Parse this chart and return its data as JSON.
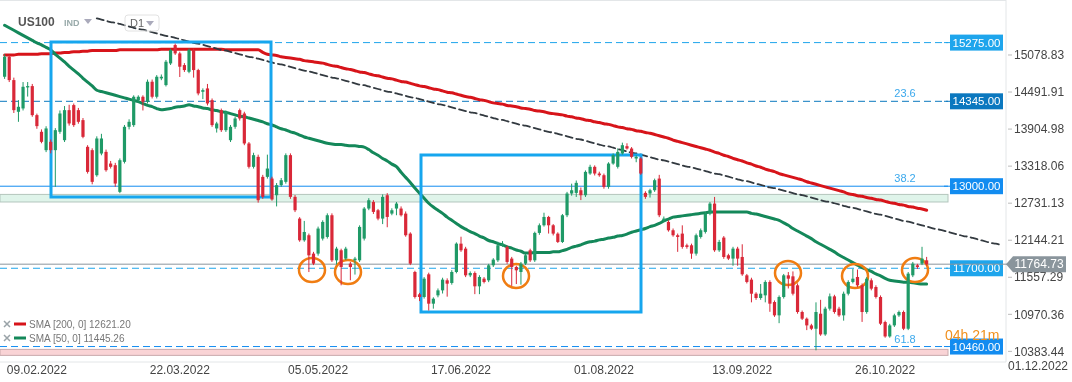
{
  "chart_data": {
    "type": "candlestick",
    "title": "US100",
    "annotations": [
      "IND",
      "D1",
      "04h 21m",
      "01.12.2022",
      {
        "text": "23.6",
        "y": 14345
      },
      {
        "text": "38.2",
        "y": 13000
      },
      {
        "text": "61.8",
        "y": 10460
      }
    ],
    "categories": [
      null,
      null,
      null,
      null,
      null,
      null,
      null,
      "09.02.2022",
      null,
      null,
      null,
      null,
      null,
      null,
      null,
      null,
      null,
      null,
      null,
      null,
      null,
      null,
      null,
      null,
      null,
      null,
      null,
      null,
      null,
      null,
      null,
      null,
      null,
      null,
      null,
      null,
      null,
      null,
      "22.03.2022",
      null,
      null,
      null,
      null,
      null,
      null,
      null,
      null,
      null,
      null,
      null,
      null,
      null,
      null,
      null,
      null,
      null,
      null,
      null,
      null,
      null,
      null,
      null,
      null,
      null,
      null,
      null,
      null,
      null,
      "05.05.2022",
      null,
      null,
      null,
      null,
      null,
      null,
      null,
      null,
      null,
      null,
      null,
      null,
      null,
      null,
      null,
      null,
      null,
      null,
      null,
      null,
      null,
      null,
      null,
      null,
      null,
      null,
      null,
      null,
      null,
      null,
      "17.06.2022",
      null,
      null,
      null,
      null,
      null,
      null,
      null,
      null,
      null,
      null,
      null,
      null,
      null,
      null,
      null,
      null,
      null,
      null,
      null,
      null,
      null,
      null,
      null,
      null,
      null,
      null,
      null,
      null,
      null,
      null,
      "01.08.2022",
      null,
      null,
      null,
      null,
      null,
      null,
      null,
      null,
      null,
      null,
      null,
      null,
      null,
      null,
      null,
      null,
      null,
      null,
      null,
      null,
      null,
      null,
      null,
      null,
      null,
      null,
      null,
      null,
      null,
      "13.09.2022",
      null,
      null,
      null,
      null,
      null,
      null,
      null,
      null,
      null,
      null,
      null,
      null,
      null,
      null,
      null,
      null,
      null,
      null,
      null,
      null,
      null,
      null,
      null,
      null,
      null,
      null,
      null,
      null,
      null,
      null,
      "26.10.2022",
      null,
      null,
      null,
      null,
      null,
      null,
      null,
      null,
      null,
      null,
      null,
      null,
      null,
      null,
      null,
      null,
      null,
      null,
      null,
      null,
      null,
      null,
      null,
      null,
      null
    ],
    "ohlc": [
      [
        14734,
        15090,
        14700,
        15051
      ],
      [
        15051,
        15080,
        14650,
        14681
      ],
      [
        14681,
        14720,
        14160,
        14205
      ],
      [
        14179,
        14364,
        14020,
        14258
      ],
      [
        14232,
        14650,
        14200,
        14575
      ],
      [
        14565,
        14650,
        14420,
        14586
      ],
      [
        14586,
        14620,
        14100,
        14126
      ],
      [
        14126,
        14150,
        13910,
        13952
      ],
      [
        13862,
        13900,
        13680,
        13703
      ],
      [
        13571,
        13950,
        13540,
        13915
      ],
      [
        13703,
        13740,
        13520,
        13571
      ],
      [
        13571,
        13920,
        12990,
        13888
      ],
      [
        13862,
        14200,
        13830,
        14152
      ],
      [
        13729,
        14270,
        13700,
        14205
      ],
      [
        14205,
        14290,
        13960,
        13994
      ],
      [
        14285,
        14310,
        13940,
        13968
      ],
      [
        14205,
        14240,
        13990,
        14020
      ],
      [
        14047,
        14080,
        13760,
        13782
      ],
      [
        13624,
        13650,
        13200,
        13227
      ],
      [
        13571,
        13600,
        13030,
        13069
      ],
      [
        13174,
        13790,
        13150,
        13756
      ],
      [
        13518,
        13830,
        13490,
        13756
      ],
      [
        13544,
        13580,
        13230,
        13254
      ],
      [
        13359,
        13400,
        13280,
        13307
      ],
      [
        13333,
        13370,
        12990,
        13042
      ],
      [
        12910,
        13440,
        12890,
        13412
      ],
      [
        13386,
        13970,
        13360,
        13941
      ],
      [
        13941,
        14060,
        13900,
        14020
      ],
      [
        13968,
        14440,
        13940,
        14417
      ],
      [
        14364,
        14440,
        14340,
        14417
      ],
      [
        14417,
        14440,
        14200,
        14337
      ],
      [
        14337,
        14690,
        14310,
        14655
      ],
      [
        14655,
        14690,
        14390,
        14417
      ],
      [
        14417,
        14760,
        14390,
        14734
      ],
      [
        14708,
        14770,
        14680,
        14734
      ],
      [
        14602,
        15000,
        14580,
        14972
      ],
      [
        14945,
        15180,
        14920,
        15157
      ],
      [
        15236,
        15260,
        15080,
        15104
      ],
      [
        15104,
        15130,
        14730,
        14893
      ],
      [
        14919,
        14950,
        14810,
        14840
      ],
      [
        14813,
        15180,
        14790,
        15157
      ],
      [
        15157,
        15180,
        14720,
        14840
      ],
      [
        14840,
        14860,
        14440,
        14470
      ],
      [
        14496,
        14550,
        14380,
        14522
      ],
      [
        14549,
        14620,
        14280,
        14311
      ],
      [
        14364,
        14390,
        13940,
        13968
      ],
      [
        13915,
        14020,
        13850,
        13994
      ],
      [
        14205,
        14230,
        13860,
        13888
      ],
      [
        13888,
        14200,
        13860,
        14179
      ],
      [
        13729,
        13970,
        13700,
        13941
      ],
      [
        13941,
        14100,
        13910,
        14073
      ],
      [
        14205,
        14230,
        14040,
        14073
      ],
      [
        14152,
        14180,
        13650,
        13677
      ],
      [
        13677,
        13700,
        13280,
        13307
      ],
      [
        13307,
        13530,
        13280,
        13492
      ],
      [
        13465,
        13500,
        12740,
        12778
      ],
      [
        13148,
        13180,
        12800,
        12831
      ],
      [
        13148,
        13500,
        13120,
        13280
      ],
      [
        13121,
        13150,
        12770,
        12790
      ],
      [
        12857,
        13050,
        12680,
        13016
      ],
      [
        13016,
        13130,
        12990,
        13095
      ],
      [
        13069,
        13520,
        13040,
        13492
      ],
      [
        13492,
        13520,
        12800,
        12831
      ],
      [
        12831,
        12860,
        12590,
        12619
      ],
      [
        12487,
        12510,
        12120,
        12143
      ],
      [
        12143,
        12450,
        12120,
        12275
      ],
      [
        12223,
        12250,
        11640,
        11905
      ],
      [
        11932,
        11960,
        11750,
        11773
      ],
      [
        11932,
        12360,
        11900,
        12329
      ],
      [
        12170,
        12460,
        12140,
        12434
      ],
      [
        12196,
        12570,
        12170,
        12540
      ],
      [
        12540,
        12570,
        11800,
        11826
      ],
      [
        11826,
        12040,
        11760,
        12011
      ],
      [
        11985,
        12010,
        11430,
        11720
      ],
      [
        11853,
        12040,
        11830,
        12011
      ],
      [
        11773,
        11800,
        11510,
        11720
      ],
      [
        11826,
        11880,
        11600,
        11853
      ],
      [
        11826,
        12380,
        11800,
        12355
      ],
      [
        12170,
        12670,
        12140,
        12646
      ],
      [
        12646,
        12810,
        12620,
        12778
      ],
      [
        12751,
        12780,
        12560,
        12593
      ],
      [
        12619,
        12640,
        12460,
        12487
      ],
      [
        12487,
        12870,
        12400,
        12831
      ],
      [
        12857,
        12890,
        12350,
        12513
      ],
      [
        12566,
        12650,
        12540,
        12619
      ],
      [
        12646,
        12750,
        12540,
        12725
      ],
      [
        12646,
        12680,
        12520,
        12540
      ],
      [
        12566,
        12600,
        12200,
        12223
      ],
      [
        12249,
        12270,
        11750,
        11773
      ],
      [
        11641,
        11660,
        11220,
        11245
      ],
      [
        11287,
        11310,
        11180,
        11245
      ],
      [
        11245,
        11560,
        11220,
        11535
      ],
      [
        11604,
        11630,
        11030,
        11139
      ],
      [
        11139,
        11240,
        11060,
        11218
      ],
      [
        11271,
        11380,
        11240,
        11350
      ],
      [
        11350,
        11550,
        11300,
        11520
      ],
      [
        11509,
        11540,
        11250,
        11456
      ],
      [
        11467,
        11670,
        11440,
        11641
      ],
      [
        11641,
        12110,
        11620,
        12090
      ],
      [
        12090,
        12200,
        11960,
        11985
      ],
      [
        12011,
        12040,
        11560,
        11588
      ],
      [
        11588,
        11650,
        11560,
        11625
      ],
      [
        11625,
        11650,
        11290,
        11414
      ],
      [
        11414,
        11590,
        11290,
        11562
      ],
      [
        11535,
        11560,
        11460,
        11483
      ],
      [
        11509,
        11770,
        11480,
        11747
      ],
      [
        11747,
        11860,
        11720,
        11837
      ],
      [
        11826,
        12120,
        11800,
        12064
      ],
      [
        12064,
        12130,
        12040,
        12090
      ],
      [
        12038,
        12060,
        11770,
        11800
      ],
      [
        11853,
        11880,
        11420,
        11720
      ],
      [
        11720,
        11740,
        11450,
        11668
      ],
      [
        11641,
        11800,
        11440,
        11773
      ],
      [
        11773,
        11930,
        11750,
        11906
      ],
      [
        11985,
        12010,
        11800,
        11826
      ],
      [
        11826,
        12280,
        11800,
        12260
      ],
      [
        12260,
        12410,
        12230,
        12381
      ],
      [
        12381,
        12580,
        12360,
        12513
      ],
      [
        12513,
        12530,
        12250,
        12381
      ],
      [
        12381,
        12400,
        12220,
        12249
      ],
      [
        12249,
        12270,
        12100,
        12117
      ],
      [
        12117,
        12560,
        12100,
        12540
      ],
      [
        12540,
        12910,
        12510,
        12884
      ],
      [
        12884,
        13040,
        12850,
        12936
      ],
      [
        12894,
        13090,
        12830,
        13053
      ],
      [
        12936,
        12980,
        12780,
        12857
      ],
      [
        12857,
        13250,
        12830,
        13227
      ],
      [
        13201,
        13340,
        13180,
        13307
      ],
      [
        13307,
        13330,
        13170,
        13201
      ],
      [
        13201,
        13230,
        13150,
        13174
      ],
      [
        13174,
        13200,
        12960,
        12989
      ],
      [
        12989,
        13380,
        12960,
        13359
      ],
      [
        13359,
        13520,
        13340,
        13492
      ],
      [
        13307,
        13600,
        13280,
        13544
      ],
      [
        13518,
        13690,
        13500,
        13650
      ],
      [
        13634,
        13680,
        13580,
        13597
      ],
      [
        13597,
        13620,
        13440,
        13465
      ],
      [
        13439,
        13490,
        13380,
        13465
      ],
      [
        13439,
        13460,
        13180,
        13201
      ],
      [
        12894,
        12920,
        12800,
        12831
      ],
      [
        12884,
        12960,
        12820,
        12936
      ],
      [
        12936,
        13120,
        12910,
        13095
      ],
      [
        13121,
        13180,
        12510,
        12540
      ],
      [
        12461,
        12520,
        12440,
        12487
      ],
      [
        12434,
        12460,
        12280,
        12302
      ],
      [
        12302,
        12330,
        12200,
        12223
      ],
      [
        12223,
        12250,
        11960,
        12196
      ],
      [
        12249,
        12380,
        12010,
        12038
      ],
      [
        12064,
        12090,
        12010,
        12038
      ],
      [
        12064,
        12090,
        11850,
        11932
      ],
      [
        11932,
        12250,
        11900,
        12223
      ],
      [
        12196,
        12330,
        12170,
        12302
      ],
      [
        12276,
        12590,
        12250,
        12566
      ],
      [
        12566,
        12750,
        12540,
        12725
      ],
      [
        12725,
        12830,
        11960,
        11985
      ],
      [
        11985,
        12150,
        11960,
        12117
      ],
      [
        12186,
        12210,
        11850,
        11879
      ],
      [
        11906,
        11930,
        11830,
        11853
      ],
      [
        11853,
        12040,
        11740,
        12011
      ],
      [
        12011,
        12040,
        11740,
        11853
      ],
      [
        11879,
        12080,
        11580,
        11604
      ],
      [
        11588,
        11610,
        11460,
        11483
      ],
      [
        11520,
        11550,
        11160,
        11297
      ],
      [
        11297,
        11320,
        11200,
        11229
      ],
      [
        11229,
        11450,
        11200,
        11297
      ],
      [
        11271,
        11510,
        11160,
        11483
      ],
      [
        11483,
        11510,
        11010,
        11139
      ],
      [
        11165,
        11190,
        10930,
        10954
      ],
      [
        10954,
        11270,
        10830,
        11245
      ],
      [
        11245,
        11610,
        11220,
        11588
      ],
      [
        11588,
        11640,
        11380,
        11535
      ],
      [
        11572,
        11650,
        11270,
        11297
      ],
      [
        11430,
        11460,
        10980,
        11007
      ],
      [
        11007,
        11030,
        10880,
        10901
      ],
      [
        10901,
        10920,
        10720,
        10795
      ],
      [
        10795,
        10820,
        10720,
        10742
      ],
      [
        10742,
        11160,
        10400,
        11007
      ],
      [
        10980,
        11200,
        10630,
        10652
      ],
      [
        10652,
        11090,
        10630,
        11060
      ],
      [
        11060,
        11300,
        11030,
        11255
      ],
      [
        11255,
        11280,
        10980,
        11007
      ],
      [
        11060,
        11090,
        10930,
        10954
      ],
      [
        10954,
        11330,
        10870,
        11297
      ],
      [
        11297,
        11510,
        11270,
        11483
      ],
      [
        11483,
        11690,
        11460,
        11535
      ],
      [
        11562,
        11680,
        11400,
        11430
      ],
      [
        11430,
        11460,
        10850,
        11007
      ],
      [
        11007,
        11560,
        10980,
        11535
      ],
      [
        11509,
        11540,
        11350,
        11377
      ],
      [
        11403,
        11430,
        11220,
        11245
      ],
      [
        11245,
        11270,
        10800,
        10822
      ],
      [
        10848,
        10870,
        10600,
        10620
      ],
      [
        10620,
        10820,
        10600,
        10795
      ],
      [
        10795,
        10980,
        10770,
        10954
      ],
      [
        10954,
        11030,
        10930,
        11007
      ],
      [
        11007,
        11030,
        10720,
        10742
      ],
      [
        10742,
        11640,
        10720,
        11615
      ],
      [
        11588,
        11800,
        11560,
        11773
      ],
      [
        11747,
        11770,
        11690,
        11720
      ],
      [
        11773,
        12040,
        11750,
        11853
      ],
      [
        11826,
        11880,
        11740,
        11765
      ],
      null,
      null,
      null,
      null,
      null,
      null,
      null,
      null,
      null,
      null,
      null,
      null,
      null,
      null,
      null,
      null
    ],
    "series": [
      {
        "name": "SMA [200, 0] 12621.20",
        "type": "line",
        "color": "#d7141a",
        "values": [
          15080,
          15080,
          15080,
          15090,
          15090,
          15090,
          15090,
          15090,
          15100,
          15100,
          15100,
          15110,
          15110,
          15120,
          15120,
          15130,
          15130,
          15140,
          15140,
          15150,
          15150,
          15150,
          15150,
          15150,
          15150,
          15160,
          15160,
          15160,
          15160,
          15160,
          15160,
          15160,
          15160,
          15160,
          15170,
          15170,
          15170,
          15170,
          15170,
          15170,
          15170,
          15170,
          15170,
          15170,
          15170,
          15170,
          15170,
          15170,
          15160,
          15160,
          15160,
          15160,
          15160,
          15160,
          15160,
          15160,
          15120,
          15090,
          15080,
          15070,
          15050,
          15040,
          15030,
          15020,
          15010,
          14990,
          14980,
          14970,
          14960,
          14950,
          14930,
          14910,
          14900,
          14880,
          14860,
          14850,
          14830,
          14810,
          14800,
          14780,
          14760,
          14750,
          14730,
          14710,
          14700,
          14680,
          14660,
          14650,
          14630,
          14610,
          14590,
          14580,
          14560,
          14540,
          14530,
          14510,
          14490,
          14480,
          14460,
          14440,
          14420,
          14410,
          14390,
          14370,
          14360,
          14340,
          14320,
          14310,
          14300,
          14280,
          14270,
          14260,
          14240,
          14230,
          14220,
          14200,
          14190,
          14180,
          14160,
          14150,
          14140,
          14130,
          14110,
          14100,
          14080,
          14070,
          14050,
          14040,
          14020,
          14010,
          13990,
          13980,
          13960,
          13940,
          13930,
          13910,
          13900,
          13880,
          13870,
          13850,
          13840,
          13820,
          13800,
          13780,
          13760,
          13730,
          13710,
          13690,
          13670,
          13650,
          13630,
          13610,
          13590,
          13570,
          13540,
          13520,
          13490,
          13470,
          13440,
          13420,
          13400,
          13370,
          13350,
          13320,
          13300,
          13270,
          13250,
          13230,
          13200,
          13180,
          13160,
          13140,
          13120,
          13100,
          13070,
          13050,
          13030,
          13010,
          12990,
          12970,
          12950,
          12930,
          12910,
          12880,
          12870,
          12850,
          12840,
          12820,
          12810,
          12790,
          12780,
          12760,
          12740,
          12730,
          12710,
          12700,
          12680,
          12670,
          12650,
          12640,
          12620,
          null,
          null,
          null,
          null,
          null,
          null,
          null,
          null,
          null,
          null,
          null,
          null,
          null,
          null,
          null,
          null
        ]
      },
      {
        "name": "SMA [50, 0] 11445.26",
        "type": "line",
        "color": "#14885a",
        "values": [
          15550,
          15510,
          15470,
          15430,
          15390,
          15350,
          15310,
          15270,
          15240,
          15200,
          15160,
          15090,
          15030,
          14970,
          14900,
          14840,
          14780,
          14710,
          14650,
          14590,
          14520,
          14500,
          14480,
          14460,
          14440,
          14420,
          14400,
          14380,
          14360,
          14340,
          14310,
          14280,
          14260,
          14230,
          14210,
          14220,
          14230,
          14250,
          14260,
          14270,
          14290,
          14270,
          14260,
          14240,
          14230,
          14210,
          14200,
          14180,
          14170,
          14150,
          14130,
          14110,
          14100,
          14080,
          14060,
          14040,
          14020,
          13990,
          13970,
          13940,
          13910,
          13890,
          13860,
          13840,
          13810,
          13780,
          13760,
          13740,
          13720,
          13700,
          13680,
          13670,
          13660,
          13660,
          13650,
          13640,
          13640,
          13630,
          13620,
          13580,
          13530,
          13490,
          13440,
          13400,
          13350,
          13310,
          13220,
          13140,
          13060,
          12970,
          12890,
          12810,
          12730,
          12670,
          12620,
          12570,
          12510,
          12460,
          12410,
          12360,
          12320,
          12280,
          12250,
          12210,
          12180,
          12140,
          12120,
          12090,
          12070,
          12040,
          12020,
          11990,
          11970,
          11940,
          11940,
          11950,
          11950,
          11950,
          11950,
          11960,
          11960,
          11980,
          12000,
          12030,
          12050,
          12070,
          12100,
          12120,
          12130,
          12150,
          12160,
          12180,
          12190,
          12210,
          12220,
          12240,
          12270,
          12290,
          12310,
          12330,
          12360,
          12380,
          12410,
          12450,
          12480,
          12510,
          12520,
          12530,
          12540,
          12550,
          12560,
          12570,
          12580,
          12590,
          12590,
          12590,
          12590,
          12590,
          12590,
          12590,
          12590,
          12590,
          12570,
          12560,
          12540,
          12520,
          12500,
          12480,
          12460,
          12420,
          12380,
          12330,
          12290,
          12250,
          12210,
          12170,
          12120,
          12080,
          12040,
          12000,
          11960,
          11910,
          11870,
          11830,
          11790,
          11750,
          11710,
          11680,
          11650,
          11610,
          11580,
          11540,
          11510,
          11500,
          11490,
          11480,
          11480,
          11470,
          11460,
          11450,
          11450,
          null,
          null,
          null,
          null,
          null,
          null,
          null,
          null,
          null,
          null,
          null,
          null,
          null,
          null,
          null,
          null
        ]
      },
      {
        "type": "line",
        "color": "#333a40",
        "line_style": "dashed",
        "values": [
          null,
          null,
          null,
          null,
          null,
          null,
          null,
          null,
          null,
          null,
          null,
          null,
          null,
          null,
          null,
          null,
          null,
          null,
          null,
          null,
          15660,
          15640,
          15620,
          15600,
          15590,
          15570,
          15550,
          15530,
          15510,
          15490,
          15480,
          15460,
          15440,
          15420,
          15400,
          15380,
          15370,
          15350,
          15330,
          15310,
          15290,
          15270,
          15260,
          15240,
          15220,
          15200,
          15180,
          15160,
          15150,
          15130,
          15110,
          15090,
          15070,
          15050,
          15040,
          15020,
          15000,
          14980,
          14960,
          14940,
          14930,
          14910,
          14890,
          14870,
          14850,
          14830,
          14820,
          14800,
          14780,
          14760,
          14740,
          14720,
          14710,
          14690,
          14670,
          14650,
          14630,
          14610,
          14600,
          14580,
          14560,
          14540,
          14520,
          14500,
          14490,
          14470,
          14450,
          14430,
          14410,
          14400,
          14380,
          14360,
          14340,
          14320,
          14300,
          14290,
          14270,
          14250,
          14230,
          14210,
          14190,
          14170,
          14160,
          14140,
          14120,
          14100,
          14080,
          14060,
          14050,
          14030,
          14010,
          13990,
          13970,
          13960,
          13940,
          13920,
          13900,
          13880,
          13860,
          13850,
          13830,
          13810,
          13790,
          13770,
          13750,
          13740,
          13720,
          13700,
          13680,
          13660,
          13640,
          13630,
          13610,
          13590,
          13570,
          13550,
          13530,
          13520,
          13500,
          13480,
          13460,
          13440,
          13420,
          13410,
          13390,
          13370,
          13350,
          13330,
          13310,
          13300,
          13280,
          13260,
          13240,
          13220,
          13200,
          13190,
          13170,
          13150,
          13130,
          13110,
          13090,
          13080,
          13060,
          13040,
          13020,
          13000,
          12980,
          12970,
          12950,
          12930,
          12910,
          12890,
          12870,
          12860,
          12840,
          12820,
          12800,
          12780,
          12760,
          12750,
          12730,
          12710,
          12690,
          12670,
          12660,
          12640,
          12620,
          12600,
          12580,
          12560,
          12550,
          12530,
          12510,
          12490,
          12470,
          12450,
          12440,
          12420,
          12400,
          12380,
          12360,
          12340,
          12320,
          12310,
          12290,
          12270,
          12250,
          12230,
          12210,
          12200,
          12180,
          12160,
          12140,
          12120,
          12100,
          12090,
          12070
        ]
      }
    ],
    "ref_lines": [
      {
        "axis": "y",
        "value": 15275,
        "label": "15275.00",
        "color": "#1ea5ec",
        "line_style": "dashed"
      },
      {
        "axis": "y",
        "value": 14345,
        "label": "14345.00",
        "color": "#0b78bf",
        "line_style": "dashed"
      },
      {
        "axis": "y",
        "value": 13000,
        "label": "13000.00",
        "color": "#128cf0",
        "line_style": "solid"
      },
      {
        "axis": "y",
        "value": 11700,
        "label": "11700.00",
        "color": "#1ea5ec",
        "line_style": "dashed"
      },
      {
        "axis": "y",
        "value": 10460,
        "label": "10460.00",
        "color": "#128cf0",
        "line_style": "dashed"
      },
      {
        "axis": "y",
        "value": 11764.73,
        "label": "11764.73",
        "color": "#8a959c",
        "line_style": "solid"
      }
    ],
    "bands": [
      {
        "axis": "y",
        "from": 12750,
        "to": 12870,
        "color": "#dff4ea"
      },
      {
        "axis": "y",
        "from": 10320,
        "to": 10415,
        "color": "#f9d3d5"
      }
    ],
    "ylim": [
      10215,
      15950
    ],
    "yticks": [
      10383.44,
      10970.36,
      11557.29,
      12144.21,
      12731.13,
      13318.06,
      13904.98,
      14491.91,
      15078.83
    ],
    "legend": "bottom left"
  }
}
